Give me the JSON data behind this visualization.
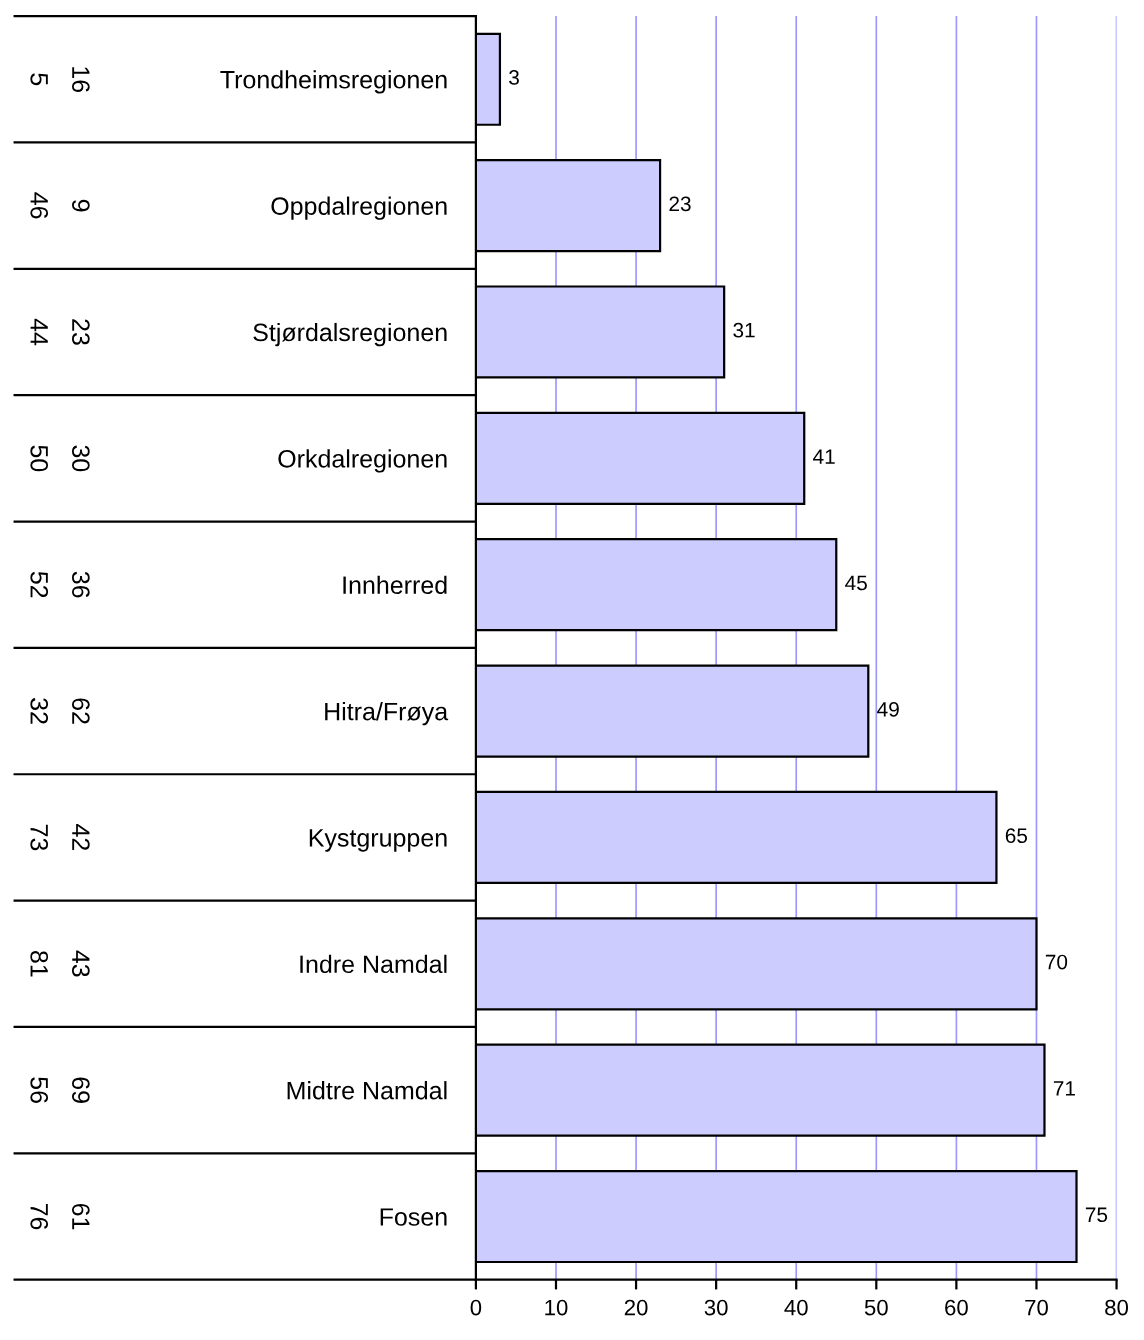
{
  "chart_data": {
    "type": "bar",
    "orientation": "horizontal",
    "categories": [
      "Trondheimsregionen",
      "Oppdalregionen",
      "Stjørdalsregionen",
      "Orkdalregionen",
      "Innherred",
      "Hitra/Frøya",
      "Kystgruppen",
      "Indre Namdal",
      "Midtre Namdal",
      "Fosen"
    ],
    "values": [
      3,
      23,
      31,
      41,
      45,
      49,
      65,
      70,
      71,
      75
    ],
    "color": "#ccccff",
    "data_labels": true,
    "xlim": [
      0,
      80
    ],
    "xticks": [
      0,
      10,
      20,
      30,
      40,
      50,
      60,
      70,
      80
    ],
    "grid": "x",
    "annotations": [
      "5",
      "46",
      "44",
      "50",
      "52",
      "32",
      "73",
      "81",
      "56",
      "76",
      "16",
      "9",
      "23",
      "30",
      "36",
      "62",
      "42",
      "43",
      "69",
      "61"
    ]
  }
}
